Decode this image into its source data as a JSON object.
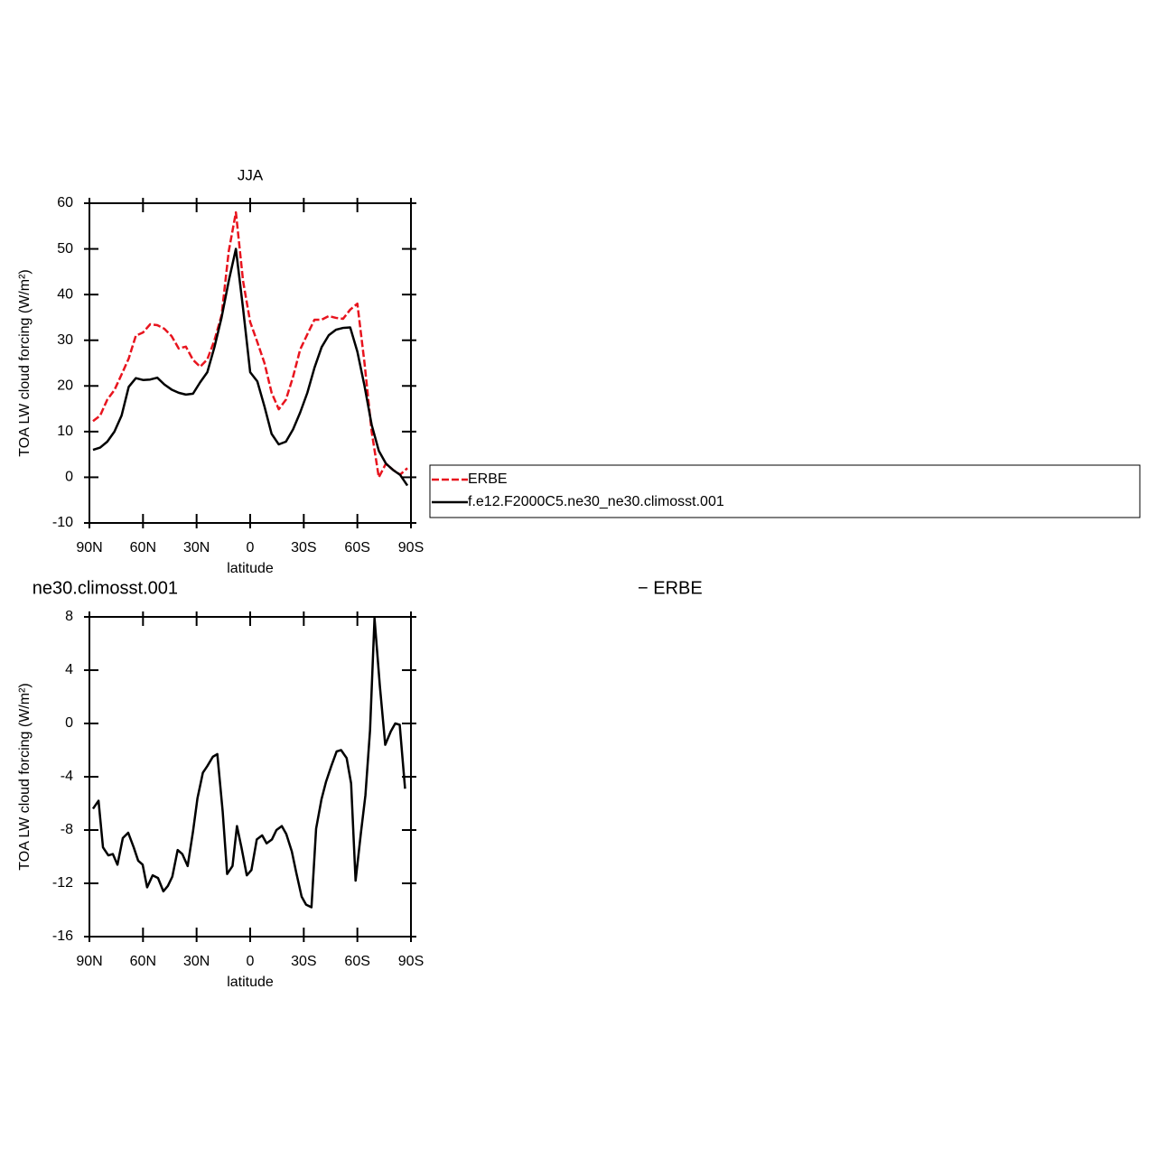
{
  "chart_data": [
    {
      "type": "line",
      "title": "JJA",
      "xlabel": "latitude",
      "ylabel": "TOA LW cloud forcing (W/m²)",
      "xlim": [
        90,
        -90
      ],
      "ylim": [
        -10,
        60
      ],
      "xticks": [
        {
          "value": 90,
          "label": "90N"
        },
        {
          "value": 60,
          "label": "60N"
        },
        {
          "value": 30,
          "label": "30N"
        },
        0,
        {
          "value": -30,
          "label": "30S"
        },
        {
          "value": -60,
          "label": "60S"
        },
        {
          "value": -90,
          "label": "90S"
        }
      ],
      "yticks": [
        -10,
        0,
        10,
        20,
        30,
        40,
        50,
        60
      ],
      "legend": "right",
      "x": [
        88,
        84,
        80,
        76,
        72,
        68,
        64,
        60,
        56,
        52,
        48,
        44,
        40,
        36,
        32,
        28,
        24,
        20,
        16,
        12,
        8,
        4,
        0,
        -4,
        -8,
        -12,
        -16,
        -20,
        -24,
        -28,
        -32,
        -36,
        -40,
        -44,
        -48,
        -52,
        -56,
        -60,
        -64,
        -68,
        -72,
        -76,
        -80,
        -84,
        -88
      ],
      "series": [
        {
          "name": "ERBE",
          "color": "#e8141e",
          "dashed": true,
          "values": [
            12.3,
            13.5,
            17,
            19.1,
            22.5,
            26,
            31,
            31.7,
            33.5,
            33.3,
            32.5,
            30.9,
            28.2,
            28.6,
            25.7,
            24.2,
            25.8,
            30,
            35.5,
            49.5,
            58,
            43,
            34,
            29.6,
            25,
            18.5,
            14.9,
            17,
            22,
            28,
            31.3,
            34.5,
            34.5,
            35.3,
            34.9,
            34.7,
            36.7,
            38,
            25,
            10,
            0,
            3,
            1.6,
            0.6,
            2
          ]
        },
        {
          "name": "f.e12.F2000C5.ne30_ne30.climosst.001",
          "color": "#000000",
          "dashed": false,
          "values": [
            6.0,
            6.5,
            7.8,
            10,
            13.5,
            19.8,
            21.7,
            21.3,
            21.4,
            21.8,
            20.3,
            19.2,
            18.5,
            18.1,
            18.3,
            20.8,
            23,
            28.5,
            35,
            43,
            50,
            37,
            23,
            21,
            15.5,
            9.5,
            7.2,
            7.8,
            10.5,
            14.2,
            18.5,
            24,
            28.5,
            31.1,
            32.3,
            32.7,
            32.8,
            27.5,
            20,
            11.5,
            5.8,
            3,
            1.6,
            0.5,
            -1.8
          ]
        }
      ]
    },
    {
      "type": "line",
      "title_left": "ne30.climosst.001",
      "title_right": "− ERBE",
      "xlabel": "latitude",
      "ylabel": "TOA LW cloud forcing (W/m²)",
      "xlim": [
        90,
        -90
      ],
      "ylim": [
        -16,
        8
      ],
      "xticks": [
        {
          "value": 90,
          "label": "90N"
        },
        {
          "value": 60,
          "label": "60N"
        },
        {
          "value": 30,
          "label": "30N"
        },
        0,
        {
          "value": -30,
          "label": "30S"
        },
        {
          "value": -60,
          "label": "60S"
        },
        {
          "value": -90,
          "label": "90S"
        }
      ],
      "yticks": [
        -16,
        -12,
        -8,
        -4,
        0,
        4,
        8
      ],
      "x": [
        88.0,
        84.9,
        82.4,
        79.4,
        76.9,
        74.3,
        71.3,
        68.3,
        65.2,
        62.7,
        60.2,
        57.7,
        54.6,
        51.6,
        48.6,
        46.1,
        43.6,
        40.6,
        38.0,
        35.0,
        32.0,
        29.5,
        26.5,
        24.0,
        20.9,
        18.4,
        15.4,
        12.9,
        9.9,
        7.4,
        4.9,
        1.9,
        -0.7,
        -3.7,
        -6.7,
        -9.2,
        -12.2,
        -14.7,
        -17.7,
        -20.2,
        -23.3,
        -25.8,
        -28.8,
        -31.3,
        -34.3,
        -36.9,
        -39.9,
        -42.4,
        -45.4,
        -48.4,
        -50.9,
        -54.0,
        -56.5,
        -59.0,
        -62.0,
        -64.5,
        -67.1,
        -69.6,
        -72.6,
        -75.6,
        -78.7,
        -81.2,
        -83.7,
        -86.7
      ],
      "series": [
        {
          "color": "#000000",
          "dashed": false,
          "values": [
            -6.4,
            -5.8,
            -9.3,
            -9.9,
            -9.8,
            -10.6,
            -8.6,
            -8.2,
            -9.3,
            -10.3,
            -10.6,
            -12.3,
            -11.4,
            -11.6,
            -12.6,
            -12.2,
            -11.5,
            -9.5,
            -9.8,
            -10.7,
            -8.1,
            -5.6,
            -3.7,
            -3.2,
            -2.5,
            -2.3,
            -6.6,
            -11.3,
            -10.7,
            -7.7,
            -9.3,
            -11.4,
            -11,
            -8.7,
            -8.4,
            -9,
            -8.7,
            -8,
            -7.7,
            -8.3,
            -9.6,
            -11.2,
            -13,
            -13.6,
            -13.8,
            -7.9,
            -5.7,
            -4.4,
            -3.2,
            -2.1,
            -2,
            -2.6,
            -4.5,
            -11.8,
            -8.2,
            -5.4,
            -0.5,
            7.9,
            2.8,
            -1.6,
            -0.6,
            0,
            -0.1,
            -4.9
          ]
        }
      ]
    }
  ]
}
